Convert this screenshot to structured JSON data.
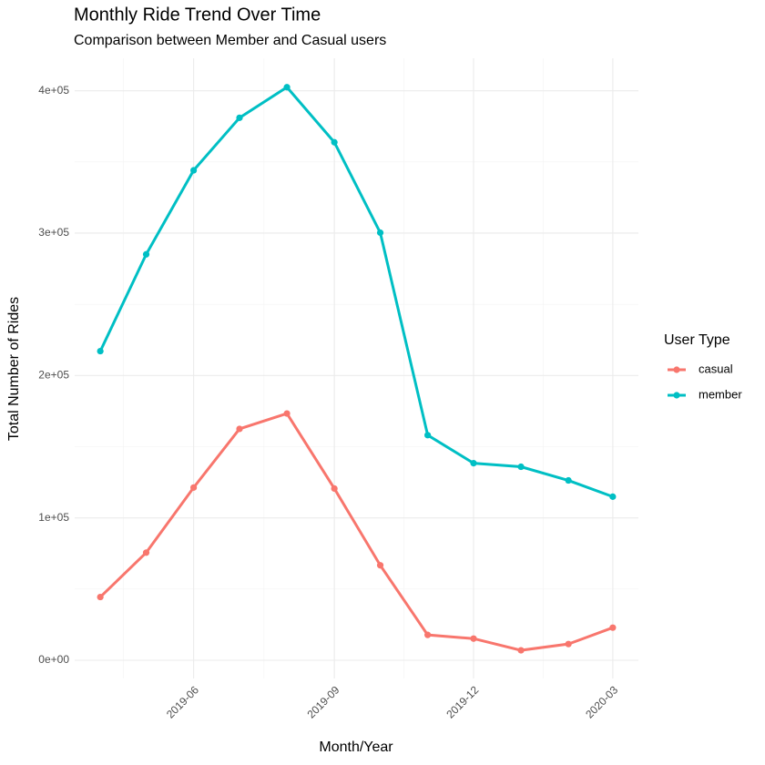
{
  "chart_data": {
    "type": "line",
    "title": "Monthly Ride Trend Over Time",
    "subtitle": "Comparison between Member and Casual users",
    "x_label": "Month/Year",
    "y_label": "Total Number of Rides",
    "legend_title": "User Type",
    "x": [
      "2019-04",
      "2019-05",
      "2019-06",
      "2019-07",
      "2019-08",
      "2019-09",
      "2019-10",
      "2019-11",
      "2019-12",
      "2020-01",
      "2020-02",
      "2020-03"
    ],
    "series": [
      {
        "name": "casual",
        "color": "#F8766D",
        "values": [
          44400,
          75600,
          121300,
          162500,
          173300,
          120600,
          66700,
          17800,
          15200,
          7000,
          11400,
          22900
        ]
      },
      {
        "name": "member",
        "color": "#00BFC4",
        "values": [
          217100,
          285100,
          344100,
          381000,
          402500,
          363800,
          300300,
          158100,
          138400,
          135900,
          126300,
          114900
        ]
      }
    ],
    "ylim": [
      -12800,
      422800
    ],
    "yticks": [
      {
        "value": 0,
        "label": "0e+00"
      },
      {
        "value": 100000,
        "label": "1e+05"
      },
      {
        "value": 200000,
        "label": "2e+05"
      },
      {
        "value": 300000,
        "label": "3e+05"
      },
      {
        "value": 400000,
        "label": "4e+05"
      }
    ],
    "xticks": [
      "2019-06",
      "2019-09",
      "2019-12",
      "2020-03"
    ],
    "grid": true,
    "legend_position": "right"
  }
}
